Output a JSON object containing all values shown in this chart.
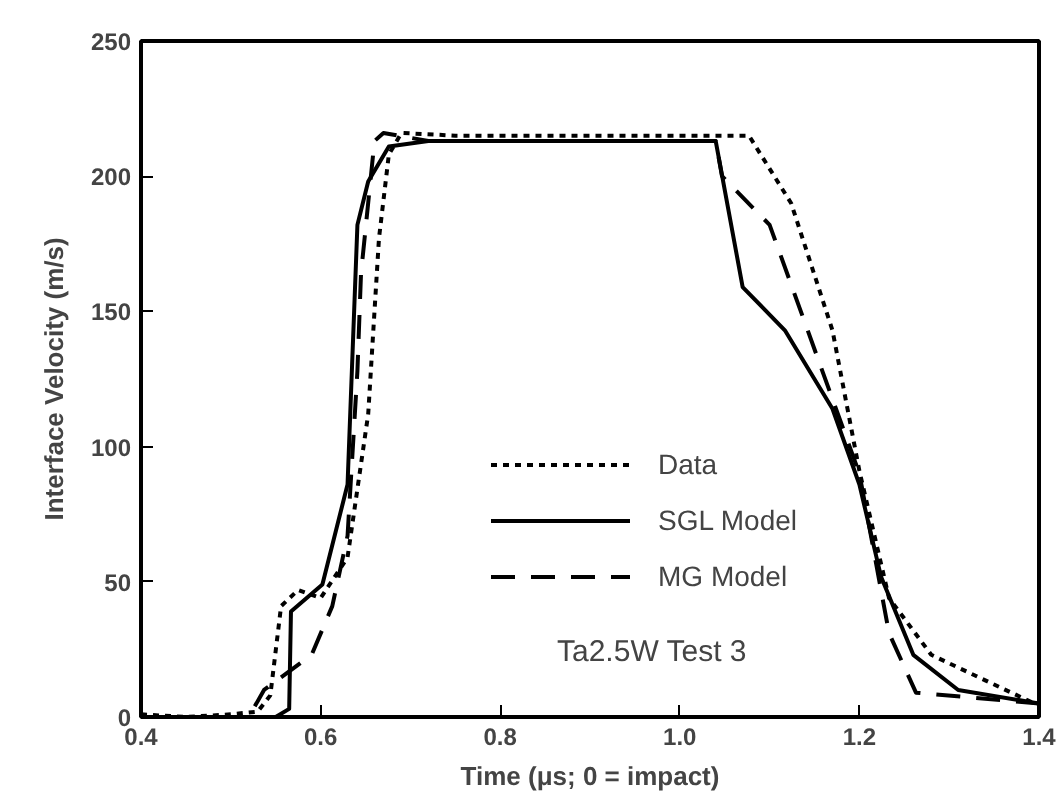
{
  "chart_data": {
    "type": "line",
    "xlabel": "Time (μs; 0 = impact)",
    "ylabel": "Interface Velocity (m/s)",
    "xlim": [
      0.4,
      1.4
    ],
    "ylim": [
      0,
      250
    ],
    "xticks": [
      0.4,
      0.6,
      0.8,
      {
        "value": 1.0,
        "label": "1.0"
      },
      1.2,
      1.4
    ],
    "yticks": [
      0,
      50,
      100,
      150,
      200,
      250
    ],
    "grid": false,
    "legend": "center",
    "annotations": [
      "Ta2.5W Test 3"
    ],
    "series": [
      {
        "name": "Data",
        "color": "#000000",
        "line_style": "dotted",
        "x": [
          0.4,
          0.45,
          0.5,
          0.53,
          0.544,
          0.556,
          0.575,
          0.6,
          0.63,
          0.653,
          0.665,
          0.676,
          0.69,
          0.75,
          0.9,
          1.04,
          1.077,
          1.124,
          1.17,
          1.2,
          1.233,
          1.28,
          1.35,
          1.395
        ],
        "values": [
          1,
          0,
          1,
          2,
          8,
          41,
          47,
          44,
          59,
          112,
          177,
          208,
          216,
          215,
          215,
          215,
          215,
          190,
          143,
          91,
          44,
          23,
          12,
          5
        ]
      },
      {
        "name": "SGL Model",
        "color": "#000000",
        "line_style": "solid",
        "x": [
          0.4,
          0.55,
          0.565,
          0.567,
          0.602,
          0.63,
          0.641,
          0.653,
          0.676,
          0.72,
          0.9,
          1.04,
          1.07,
          1.117,
          1.17,
          1.2,
          1.224,
          1.26,
          1.31,
          1.4
        ],
        "values": [
          0,
          0,
          3,
          39,
          49,
          86,
          182,
          198,
          211,
          213,
          213,
          213,
          159,
          143,
          114,
          86,
          52,
          23,
          10,
          5
        ]
      },
      {
        "name": "MG Model",
        "color": "#000000",
        "line_style": "dashed",
        "x": [
          0.4,
          0.52,
          0.537,
          0.59,
          0.613,
          0.63,
          0.641,
          0.645,
          0.66,
          0.67,
          0.72,
          0.9,
          1.04,
          1.047,
          1.1,
          1.2,
          1.233,
          1.263,
          1.4
        ],
        "values": [
          0,
          0,
          10,
          23,
          41,
          67,
          128,
          164,
          213,
          216,
          213,
          213,
          213,
          200,
          182,
          90,
          31,
          9,
          5
        ]
      }
    ]
  }
}
